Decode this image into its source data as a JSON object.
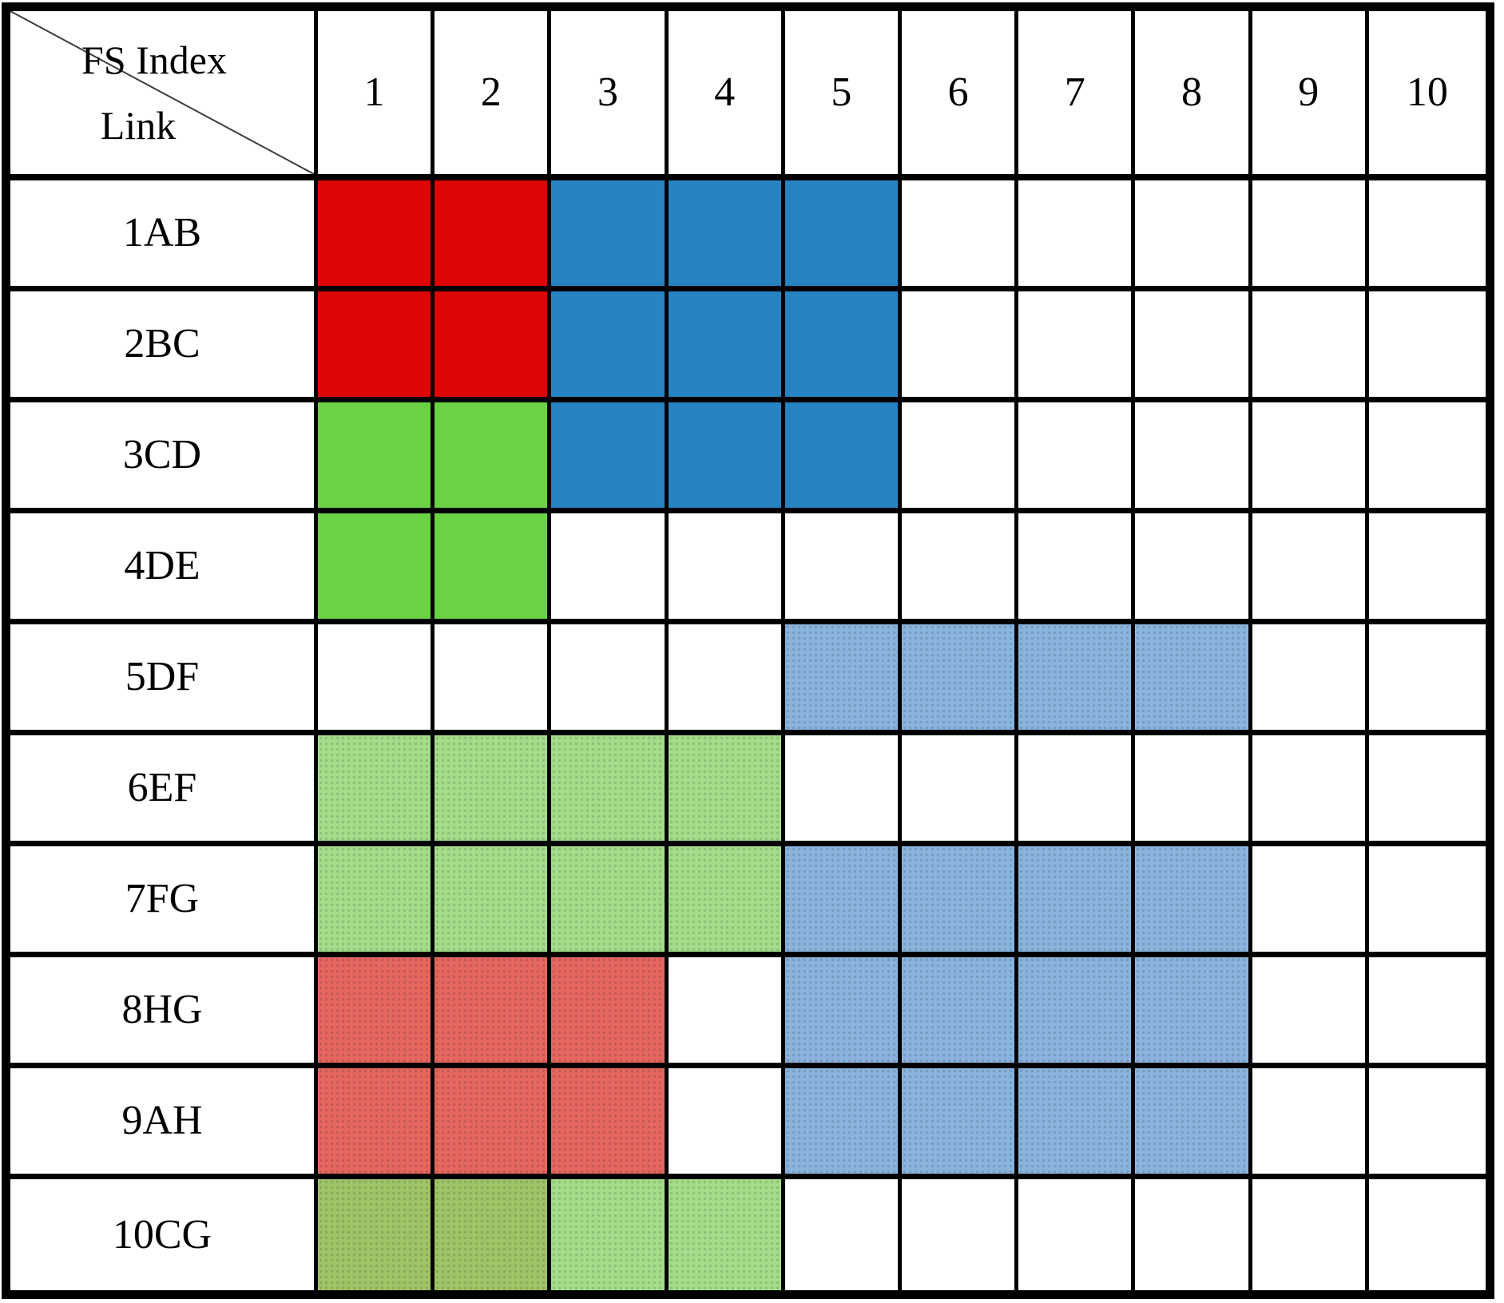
{
  "table": {
    "corner": {
      "top_label": "FS Index",
      "bottom_label": "Link"
    },
    "columns": [
      "1",
      "2",
      "3",
      "4",
      "5",
      "6",
      "7",
      "8",
      "9",
      "10"
    ],
    "rows": [
      {
        "label": "1AB",
        "cells": [
          "red",
          "red",
          "blue",
          "blue",
          "blue",
          "",
          "",
          "",
          "",
          ""
        ]
      },
      {
        "label": "2BC",
        "cells": [
          "red",
          "red",
          "blue",
          "blue",
          "blue",
          "",
          "",
          "",
          "",
          ""
        ]
      },
      {
        "label": "3CD",
        "cells": [
          "green",
          "green",
          "blue",
          "blue",
          "blue",
          "",
          "",
          "",
          "",
          ""
        ]
      },
      {
        "label": "4DE",
        "cells": [
          "green",
          "green",
          "",
          "",
          "",
          "",
          "",
          "",
          "",
          ""
        ]
      },
      {
        "label": "5DF",
        "cells": [
          "",
          "",
          "",
          "",
          "lightblue",
          "lightblue",
          "lightblue",
          "lightblue",
          "",
          ""
        ]
      },
      {
        "label": "6EF",
        "cells": [
          "lightgreen",
          "lightgreen",
          "lightgreen",
          "lightgreen",
          "",
          "",
          "",
          "",
          "",
          ""
        ]
      },
      {
        "label": "7FG",
        "cells": [
          "lightgreen",
          "lightgreen",
          "lightgreen",
          "lightgreen",
          "lightblue",
          "lightblue",
          "lightblue",
          "lightblue",
          "",
          ""
        ]
      },
      {
        "label": "8HG",
        "cells": [
          "salmon",
          "salmon",
          "salmon",
          "",
          "lightblue",
          "lightblue",
          "lightblue",
          "lightblue",
          "",
          ""
        ]
      },
      {
        "label": "9AH",
        "cells": [
          "salmon",
          "salmon",
          "salmon",
          "",
          "lightblue",
          "lightblue",
          "lightblue",
          "lightblue",
          "",
          ""
        ]
      },
      {
        "label": "10CG",
        "cells": [
          "olive",
          "olive",
          "lightgreen",
          "lightgreen",
          "",
          "",
          "",
          "",
          "",
          ""
        ]
      }
    ],
    "colors": {
      "red": "#DD0505",
      "blue": "#2783C2",
      "green": "#6BD243",
      "lightblue": "#8AB4DD",
      "lightgreen": "#A4DD8A",
      "salmon": "#E5675F",
      "olive": "#A0C367"
    },
    "dotted_colors": [
      "lightblue",
      "lightgreen",
      "salmon",
      "olive"
    ]
  }
}
